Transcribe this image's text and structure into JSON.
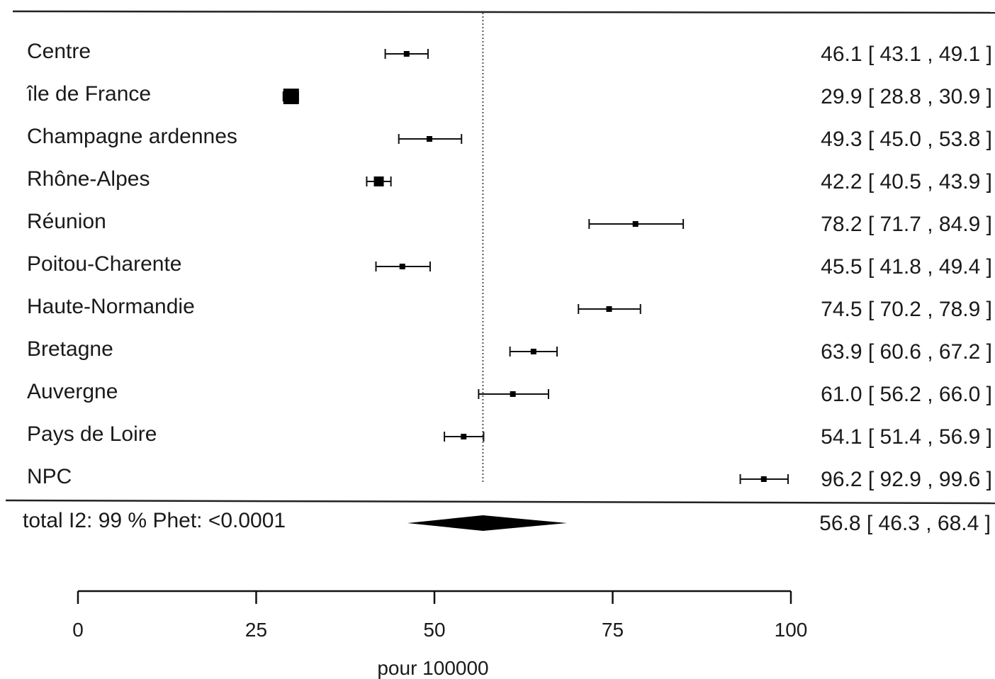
{
  "chart_data": {
    "type": "forest",
    "title": "",
    "xlabel": "pour 100000",
    "xlim": [
      0,
      100
    ],
    "ticks": [
      0,
      25,
      50,
      75,
      100
    ],
    "reference_line": 56.8,
    "rows": [
      {
        "label": "Centre",
        "est": 46.1,
        "lo": 43.1,
        "hi": 49.1,
        "ci_text": "46.1 [ 43.1 , 49.1 ]",
        "weight": "small"
      },
      {
        "label": "île de France",
        "est": 29.9,
        "lo": 28.8,
        "hi": 30.9,
        "ci_text": "29.9 [ 28.8 , 30.9 ]",
        "weight": "large"
      },
      {
        "label": "Champagne ardennes",
        "est": 49.3,
        "lo": 45.0,
        "hi": 53.8,
        "ci_text": "49.3 [ 45.0 , 53.8 ]",
        "weight": "small"
      },
      {
        "label": "Rhône-Alpes",
        "est": 42.2,
        "lo": 40.5,
        "hi": 43.9,
        "ci_text": "42.2 [ 40.5 , 43.9 ]",
        "weight": "medium"
      },
      {
        "label": "Réunion",
        "est": 78.2,
        "lo": 71.7,
        "hi": 84.9,
        "ci_text": "78.2 [ 71.7 , 84.9 ]",
        "weight": "small"
      },
      {
        "label": "Poitou-Charente",
        "est": 45.5,
        "lo": 41.8,
        "hi": 49.4,
        "ci_text": "45.5 [ 41.8 , 49.4 ]",
        "weight": "small"
      },
      {
        "label": "Haute-Normandie",
        "est": 74.5,
        "lo": 70.2,
        "hi": 78.9,
        "ci_text": "74.5 [ 70.2 , 78.9 ]",
        "weight": "small"
      },
      {
        "label": "Bretagne",
        "est": 63.9,
        "lo": 60.6,
        "hi": 67.2,
        "ci_text": "63.9 [ 60.6 , 67.2 ]",
        "weight": "small"
      },
      {
        "label": "Auvergne",
        "est": 61.0,
        "lo": 56.2,
        "hi": 66.0,
        "ci_text": "61.0 [ 56.2 , 66.0 ]",
        "weight": "small"
      },
      {
        "label": "Pays de Loire",
        "est": 54.1,
        "lo": 51.4,
        "hi": 56.9,
        "ci_text": "54.1 [ 51.4 , 56.9 ]",
        "weight": "small"
      },
      {
        "label": "NPC",
        "est": 96.2,
        "lo": 92.9,
        "hi": 99.6,
        "ci_text": "96.2 [ 92.9 , 99.6 ]",
        "weight": "small"
      }
    ],
    "summary": {
      "label": "total  I2: 99 % Phet: <0.0001",
      "est": 56.8,
      "lo": 46.3,
      "hi": 68.4,
      "ci_text": "56.8 [ 46.3 , 68.4 ]"
    }
  }
}
